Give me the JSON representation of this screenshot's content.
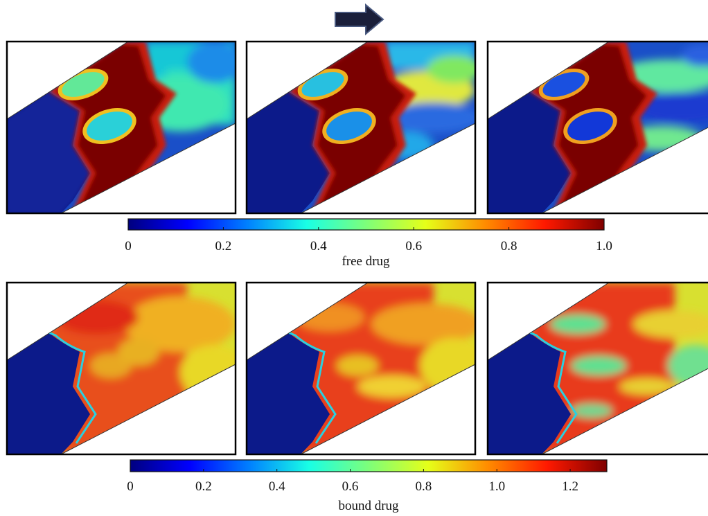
{
  "arrow": {
    "icon": "right-arrow-icon",
    "color": "#1a1f3a",
    "outline": "#4a5a80"
  },
  "panels": {
    "rows": [
      {
        "name": "free",
        "columns": [
          {
            "variant": "a"
          },
          {
            "variant": "b"
          },
          {
            "variant": "c"
          }
        ]
      },
      {
        "name": "bound",
        "columns": [
          {
            "variant": "a"
          },
          {
            "variant": "b"
          },
          {
            "variant": "c"
          }
        ]
      }
    ]
  },
  "colorbars": [
    {
      "label": "free drug",
      "ticks": [
        "0",
        "0.2",
        "0.4",
        "0.6",
        "0.8",
        "1.0"
      ],
      "tick_values": [
        0,
        0.2,
        0.4,
        0.6,
        0.8,
        1.0
      ],
      "range": [
        0,
        1.0
      ]
    },
    {
      "label": "bound drug",
      "ticks": [
        "0",
        "0.2",
        "0.4",
        "0.6",
        "0.8",
        "1.0",
        "1.2"
      ],
      "tick_values": [
        0,
        0.2,
        0.4,
        0.6,
        0.8,
        1.0,
        1.2
      ],
      "range": [
        0,
        1.3
      ]
    }
  ],
  "colormap": [
    "#00007f",
    "#0000ff",
    "#00a6ff",
    "#19ffe5",
    "#7dff7a",
    "#e5ff19",
    "#ff8c00",
    "#ff1900",
    "#7f0000"
  ]
}
